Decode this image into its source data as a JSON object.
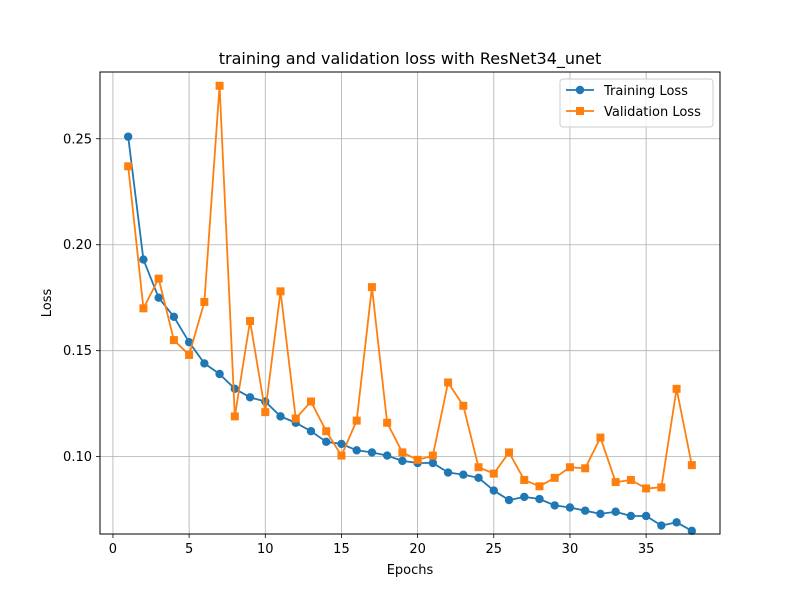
{
  "chart_data": {
    "type": "line",
    "title": "training and validation loss with ResNet34_unet",
    "xlabel": "Epochs",
    "ylabel": "Loss",
    "xlim": [
      -0.85,
      39.85
    ],
    "ylim": [
      0.0635,
      0.2815
    ],
    "xticks": [
      0,
      5,
      10,
      15,
      20,
      25,
      30,
      35
    ],
    "yticks": [
      0.1,
      0.15,
      0.2,
      0.25
    ],
    "xtick_labels": [
      "0",
      "5",
      "10",
      "15",
      "20",
      "25",
      "30",
      "35"
    ],
    "ytick_labels": [
      "0.10",
      "0.15",
      "0.20",
      "0.25"
    ],
    "grid": true,
    "legend_position": "top-right",
    "x": [
      1,
      2,
      3,
      4,
      5,
      6,
      7,
      8,
      9,
      10,
      11,
      12,
      13,
      14,
      15,
      16,
      17,
      18,
      19,
      20,
      21,
      22,
      23,
      24,
      25,
      26,
      27,
      28,
      29,
      30,
      31,
      32,
      33,
      34,
      35,
      36,
      37,
      38
    ],
    "series": [
      {
        "name": "Training Loss",
        "color": "#1f77b4",
        "marker": "circle",
        "values": [
          0.251,
          0.193,
          0.175,
          0.166,
          0.154,
          0.144,
          0.139,
          0.132,
          0.128,
          0.126,
          0.119,
          0.116,
          0.112,
          0.107,
          0.106,
          0.103,
          0.102,
          0.1005,
          0.098,
          0.097,
          0.097,
          0.0925,
          0.0915,
          0.09,
          0.084,
          0.0795,
          0.081,
          0.08,
          0.077,
          0.076,
          0.0745,
          0.073,
          0.074,
          0.072,
          0.072,
          0.0675,
          0.069,
          0.065
        ]
      },
      {
        "name": "Validation Loss",
        "color": "#ff7f0e",
        "marker": "square",
        "values": [
          0.237,
          0.17,
          0.184,
          0.155,
          0.148,
          0.173,
          0.275,
          0.119,
          0.164,
          0.121,
          0.178,
          0.118,
          0.126,
          0.112,
          0.1005,
          0.117,
          0.18,
          0.116,
          0.102,
          0.0985,
          0.1005,
          0.135,
          0.124,
          0.095,
          0.092,
          0.102,
          0.089,
          0.086,
          0.09,
          0.095,
          0.0945,
          0.109,
          0.088,
          0.089,
          0.085,
          0.0855,
          0.132,
          0.096
        ]
      }
    ]
  }
}
